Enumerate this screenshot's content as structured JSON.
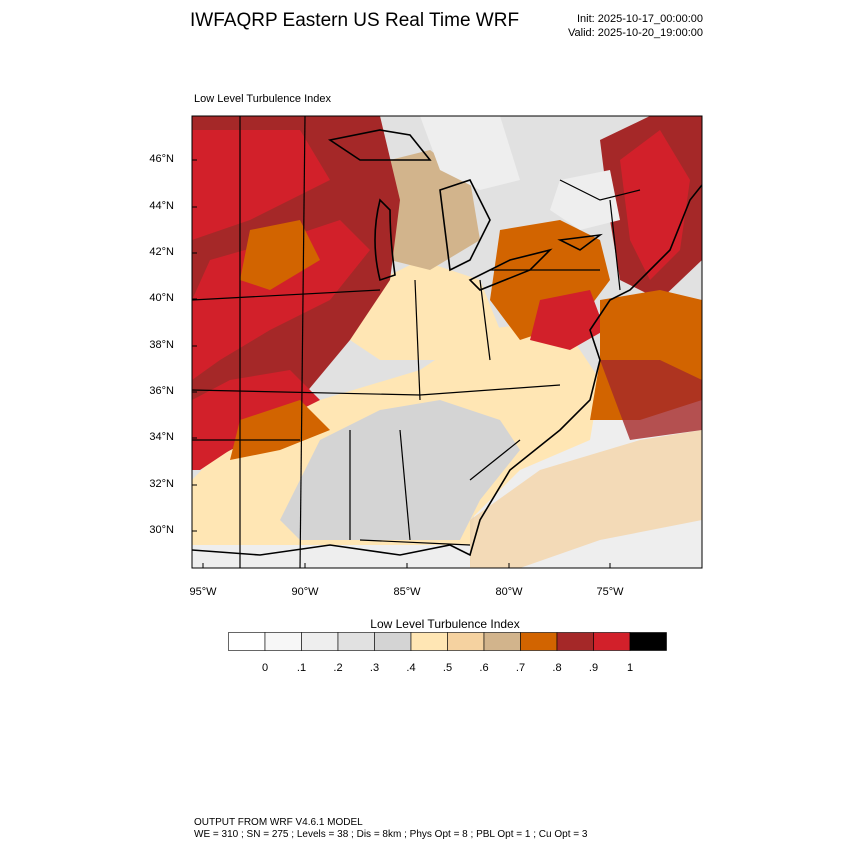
{
  "header": {
    "title": "IWFAQRP Eastern US Real Time WRF",
    "init": "Init: 2025-10-17_00:00:00",
    "valid": "Valid: 2025-10-20_19:00:00"
  },
  "plot": {
    "subtitle": "Low Level Turbulence Index",
    "lat_labels": [
      "46°N",
      "44°N",
      "42°N",
      "40°N",
      "38°N",
      "36°N",
      "34°N",
      "32°N",
      "30°N"
    ],
    "lon_labels": [
      "95°W",
      "90°W",
      "85°W",
      "80°W",
      "75°W"
    ]
  },
  "colorbar": {
    "title": "Low Level Turbulence Index",
    "labels": [
      "0",
      ".1",
      ".2",
      ".3",
      ".4",
      ".5",
      ".6",
      ".7",
      ".8",
      ".9",
      "1"
    ],
    "colors": [
      "#ffffff",
      "#f7f7f7",
      "#eeeeee",
      "#e1e1e1",
      "#d4d4d4",
      "#ffe6b4",
      "#f5d2a0",
      "#d2b48c",
      "#d26400",
      "#a52828",
      "#d2202a",
      "#000000"
    ]
  },
  "footer": {
    "line1": "OUTPUT FROM WRF V4.6.1 MODEL",
    "line2": "WE = 310 ; SN = 275 ; Levels = 38 ; Dis = 8km ; Phys Opt = 8 ; PBL Opt = 1 ; Cu Opt = 3"
  }
}
